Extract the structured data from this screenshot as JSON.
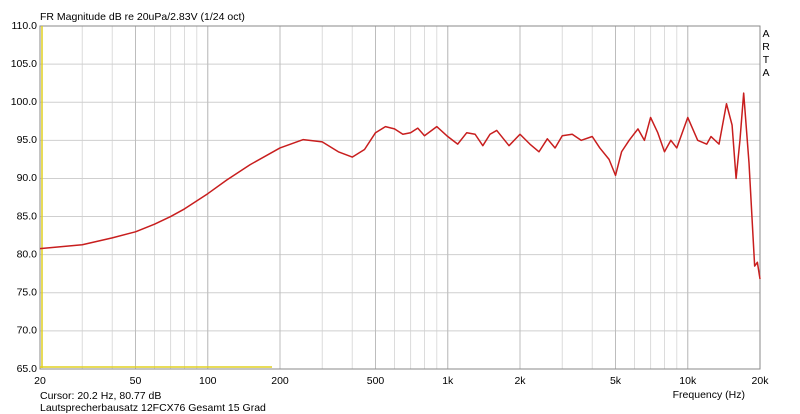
{
  "chart_data": {
    "type": "line",
    "title": "FR Magnitude dB re 20uPa/2.83V (1/24 oct)",
    "brand": "ARTA",
    "cursor_text": "Cursor: 20.2 Hz, 80.77 dB",
    "caption": "Lautsprecherbausatz 12FCX76 Gesamt 15 Grad",
    "x_label": "Frequency (Hz)",
    "xlog": true,
    "grid": true,
    "color": "#c81e1e",
    "xlim": [
      20,
      20000
    ],
    "ylim": [
      65,
      110
    ],
    "xticks": [
      20,
      50,
      100,
      200,
      500,
      {
        "value": 1000,
        "label": "1k"
      },
      {
        "value": 2000,
        "label": "2k"
      },
      {
        "value": 5000,
        "label": "5k"
      },
      {
        "value": 10000,
        "label": "10k"
      },
      {
        "value": 20000,
        "label": "20k"
      }
    ],
    "yticks": [
      {
        "value": 65,
        "label": "65.0"
      },
      {
        "value": 70,
        "label": "70.0"
      },
      {
        "value": 75,
        "label": "75.0"
      },
      {
        "value": 80,
        "label": "80.0"
      },
      {
        "value": 85,
        "label": "85.0"
      },
      {
        "value": 90,
        "label": "90.0"
      },
      {
        "value": 95,
        "label": "95.0"
      },
      {
        "value": 100,
        "label": "100.0"
      },
      {
        "value": 105,
        "label": "105.0"
      },
      {
        "value": 110,
        "label": "110.0"
      }
    ],
    "x": [
      20,
      30,
      40,
      50,
      60,
      70,
      80,
      100,
      120,
      150,
      200,
      250,
      300,
      350,
      400,
      450,
      500,
      550,
      600,
      650,
      700,
      750,
      800,
      900,
      1000,
      1100,
      1200,
      1300,
      1400,
      1500,
      1600,
      1800,
      2000,
      2200,
      2400,
      2600,
      2800,
      3000,
      3300,
      3600,
      4000,
      4300,
      4700,
      5000,
      5300,
      5700,
      6200,
      6600,
      7000,
      7500,
      8000,
      8500,
      9000,
      10000,
      11000,
      12000,
      12500,
      13500,
      14500,
      15300,
      15900,
      16500,
      17100,
      18000,
      19000,
      19500,
      20000
    ],
    "values": [
      80.8,
      81.3,
      82.2,
      83.0,
      84.0,
      85.0,
      86.0,
      88.0,
      89.8,
      91.8,
      94.0,
      95.1,
      94.8,
      93.5,
      92.8,
      93.8,
      96.0,
      96.8,
      96.5,
      95.8,
      96.0,
      96.6,
      95.6,
      96.8,
      95.5,
      94.5,
      96.0,
      95.8,
      94.3,
      95.8,
      96.3,
      94.3,
      95.8,
      94.5,
      93.5,
      95.2,
      94.0,
      95.6,
      95.8,
      95.0,
      95.5,
      94.0,
      92.5,
      90.4,
      93.5,
      95.0,
      96.5,
      95.0,
      98.0,
      96.0,
      93.5,
      95.0,
      94.0,
      98.0,
      95.0,
      94.5,
      95.5,
      94.5,
      99.8,
      97.0,
      90.0,
      95.0,
      101.2,
      92.0,
      78.5,
      79.0,
      76.8
    ]
  }
}
